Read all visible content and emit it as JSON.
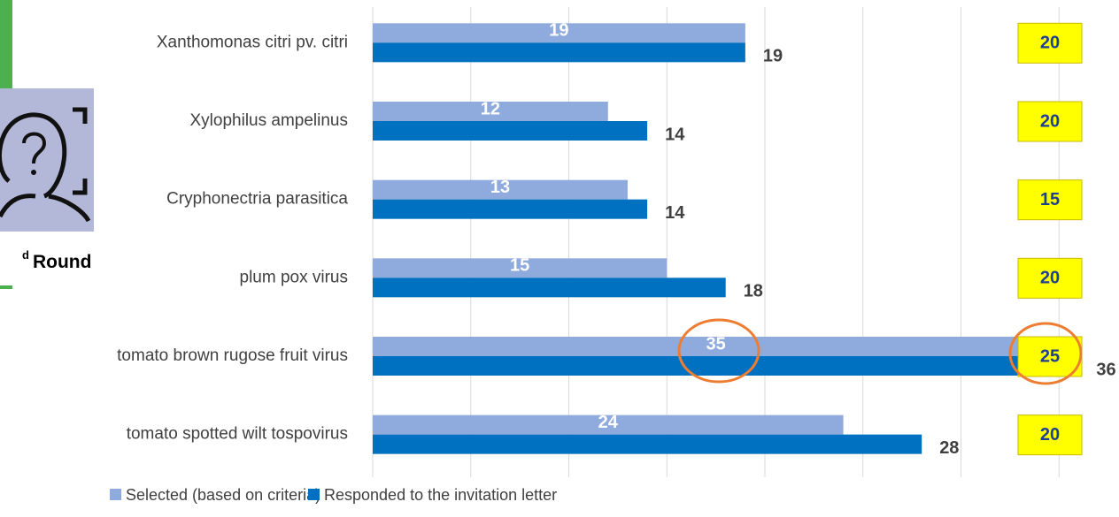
{
  "chart_data": {
    "type": "bar",
    "orientation": "horizontal",
    "categories": [
      "Xanthomonas citri pv. citri",
      "Xylophilus ampelinus",
      "Cryphonectria parasitica",
      "plum pox virus",
      "tomato brown rugose fruit virus",
      "tomato spotted wilt tospovirus"
    ],
    "series": [
      {
        "name": "Selected (based on criteria)",
        "color": "#8faadc",
        "values": [
          19,
          12,
          13,
          15,
          35,
          24
        ]
      },
      {
        "name": "Responded to the invitation letter",
        "color": "#0070c0",
        "values": [
          19,
          14,
          14,
          18,
          36,
          28
        ]
      }
    ],
    "boxes": [
      20,
      20,
      15,
      20,
      25,
      20
    ],
    "round_label": {
      "sup": "d",
      "text": "Round"
    },
    "xlim": [
      0,
      40
    ],
    "xticks": [
      0,
      5,
      10,
      15,
      20,
      25,
      30,
      35
    ],
    "grid": true,
    "legend": "bottom"
  }
}
